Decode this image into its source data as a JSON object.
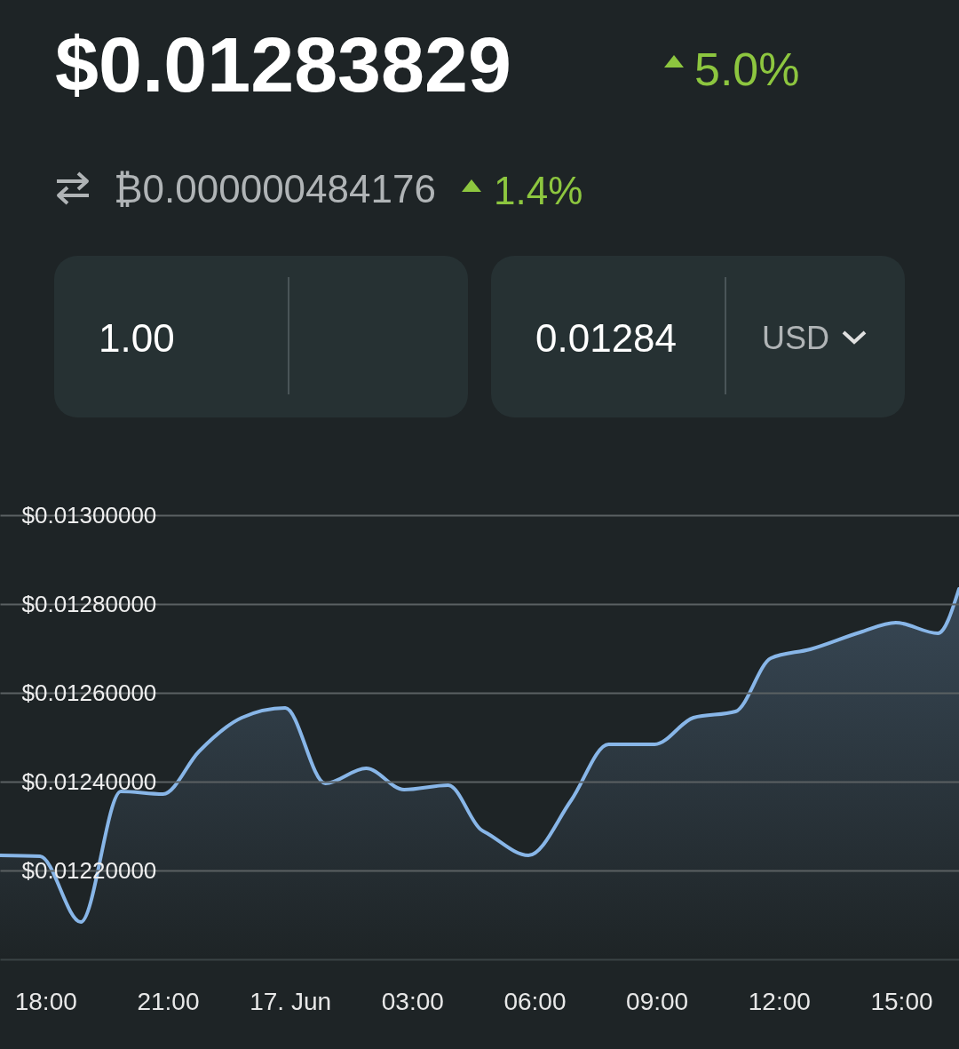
{
  "chart_data": {
    "type": "area",
    "title": "$0.01283829",
    "annotations": [
      "5.0%",
      "₿0.000000484176",
      "1.4%",
      "1.00",
      "0.01284",
      "USD"
    ],
    "x": [
      "--06-16T16:53",
      "--06-16T17:52",
      "--06-16T18:52",
      "--06-16T19:51",
      "--06-16T20:53",
      "--06-16T21:46",
      "--06-16T22:49",
      "--06-16T23:53",
      "--06-17T00:52",
      "--06-17T01:52",
      "--06-17T02:48",
      "--06-17T03:53",
      "--06-17T04:41",
      "--06-17T04:52",
      "--06-17T05:51",
      "--06-17T06:54",
      "--06-17T07:49",
      "--06-17T08:57",
      "--06-17T09:54",
      "--06-17T10:56",
      "--06-17T11:48",
      "--06-17T12:46",
      "--06-17T13:59",
      "--06-17T14:52",
      "--06-17T15:54",
      "--06-17T16:25"
    ],
    "series": [
      {
        "color": "#88b6e8",
        "values": [
          0.012234,
          0.012232,
          0.012084,
          0.012378,
          0.012372,
          0.012468,
          0.012544,
          0.012566,
          0.012396,
          0.01243,
          0.012382,
          0.012392,
          0.012292,
          0.012282,
          0.012234,
          0.012358,
          0.012484,
          0.012484,
          0.012544,
          0.012558,
          0.012678,
          0.012698,
          0.012736,
          0.012758,
          0.012734,
          0.012834
        ]
      }
    ],
    "xlim": [
      "--06-16T16:53",
      "--06-17T16:25"
    ],
    "xticks": [
      {
        "value": "--06-16T18:00",
        "label": "18:00"
      },
      {
        "value": "--06-16T21:00",
        "label": "21:00"
      },
      {
        "value": "--06-17T00:00",
        "label": "17. Jun"
      },
      {
        "value": "--06-17T03:00",
        "label": "03:00"
      },
      {
        "value": "--06-17T06:00",
        "label": "06:00"
      },
      {
        "value": "--06-17T09:00",
        "label": "09:00"
      },
      {
        "value": "--06-17T12:00",
        "label": "12:00"
      },
      {
        "value": "--06-17T15:00",
        "label": "15:00"
      }
    ],
    "ylim": [
      0.012,
      0.013
    ],
    "yticks": [
      {
        "value": 0.0122,
        "label": "$0.01220000"
      },
      {
        "value": 0.0124,
        "label": "$0.01240000"
      },
      {
        "value": 0.0126,
        "label": "$0.01260000"
      },
      {
        "value": 0.0128,
        "label": "$0.01280000"
      },
      {
        "value": 0.013,
        "label": "$0.01300000"
      }
    ],
    "grid": "y"
  }
}
